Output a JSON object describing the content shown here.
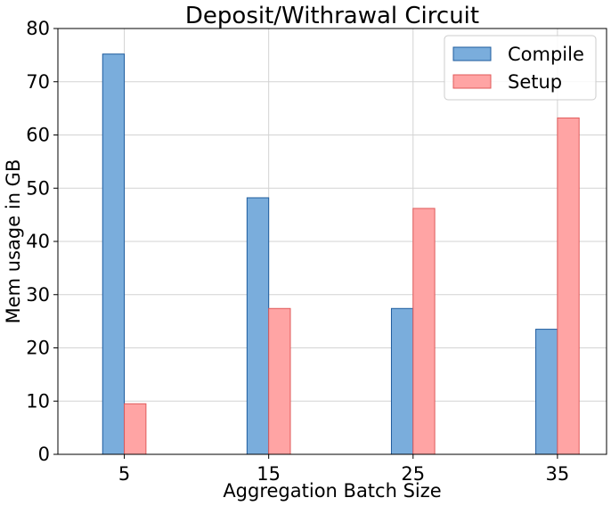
{
  "chart_data": {
    "type": "bar",
    "title": "Deposit/Withrawal Circuit",
    "xlabel": "Aggregation Batch Size",
    "ylabel": "Mem usage in GB",
    "categories": [
      "5",
      "15",
      "25",
      "35"
    ],
    "x": [
      5,
      15,
      25,
      35
    ],
    "xlim": [
      0.4,
      38.4
    ],
    "ylim": [
      0,
      80
    ],
    "yticks": [
      0,
      10,
      20,
      30,
      40,
      50,
      60,
      70,
      80
    ],
    "yticks_text": [
      "0",
      "10",
      "20",
      "30",
      "40",
      "50",
      "60",
      "70",
      "80"
    ],
    "grid": true,
    "legend_position": "top-right",
    "bar_width": 1.5,
    "series": [
      {
        "name": "Compile",
        "values": [
          75.2,
          48.2,
          27.4,
          23.5
        ],
        "color": "#7aaddc",
        "edge": "#1f5c9e"
      },
      {
        "name": "Setup",
        "values": [
          9.5,
          27.4,
          46.2,
          63.2
        ],
        "color": "#ffa4a4",
        "edge": "#e05a5a"
      }
    ]
  }
}
